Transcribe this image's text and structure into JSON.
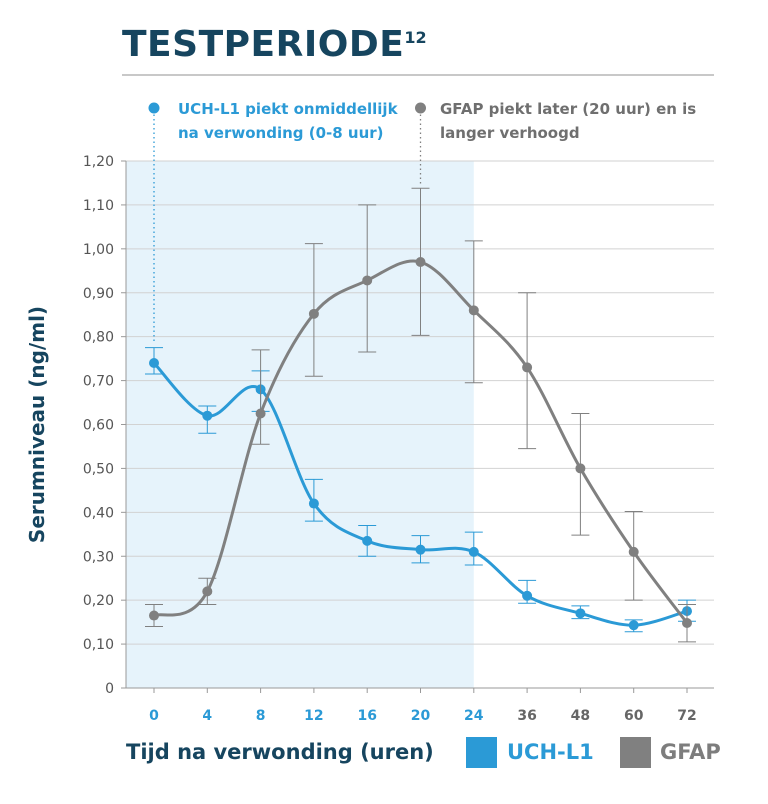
{
  "chart_data": {
    "type": "line",
    "title": "TESTPERIODE",
    "title_superscript": "12",
    "xlabel": "Tijd na verwonding (uren)",
    "ylabel": "Serumniveau (ng/ml)",
    "categories": [
      "0",
      "4",
      "8",
      "12",
      "16",
      "20",
      "24",
      "36",
      "48",
      "60",
      "72"
    ],
    "y_ticks": [
      "0",
      "0,10",
      "0,20",
      "0,30",
      "0,40",
      "0,50",
      "0,60",
      "0,70",
      "0,80",
      "0,90",
      "1,00",
      "1,10",
      "1,20"
    ],
    "ylim": [
      0,
      1.2
    ],
    "grid": true,
    "highlight_range": {
      "from": "0",
      "to": "24"
    },
    "series": [
      {
        "name": "UCH-L1",
        "color": "#2b9ad6",
        "values": [
          0.74,
          0.62,
          0.68,
          0.42,
          0.335,
          0.315,
          0.31,
          0.21,
          0.17,
          0.143,
          0.175
        ],
        "err_low": [
          0.715,
          0.58,
          0.63,
          0.38,
          0.3,
          0.285,
          0.28,
          0.193,
          0.158,
          0.128,
          0.152
        ],
        "err_high": [
          0.775,
          0.642,
          0.722,
          0.475,
          0.37,
          0.347,
          0.355,
          0.245,
          0.187,
          0.155,
          0.2
        ]
      },
      {
        "name": "GFAP",
        "color": "#808080",
        "values": [
          0.165,
          0.22,
          0.625,
          0.852,
          0.928,
          0.97,
          0.86,
          0.73,
          0.5,
          0.31,
          0.148
        ],
        "err_low": [
          0.14,
          0.19,
          0.555,
          0.71,
          0.765,
          0.803,
          0.695,
          0.545,
          0.348,
          0.2,
          0.105
        ],
        "err_high": [
          0.19,
          0.25,
          0.77,
          1.012,
          1.1,
          1.138,
          1.018,
          0.9,
          0.625,
          0.402,
          0.19
        ]
      }
    ],
    "annotations": [
      {
        "series": "UCH-L1",
        "lines": [
          "UCH-L1 piekt onmiddellijk",
          "na verwonding (0-8 uur)"
        ],
        "anchor": "0"
      },
      {
        "series": "GFAP",
        "lines": [
          "GFAP piekt later (20 uur) en is",
          "langer verhoogd"
        ],
        "anchor": "20"
      }
    ],
    "legend": [
      "UCH-L1",
      "GFAP"
    ],
    "legend_position": "bottom-right"
  }
}
